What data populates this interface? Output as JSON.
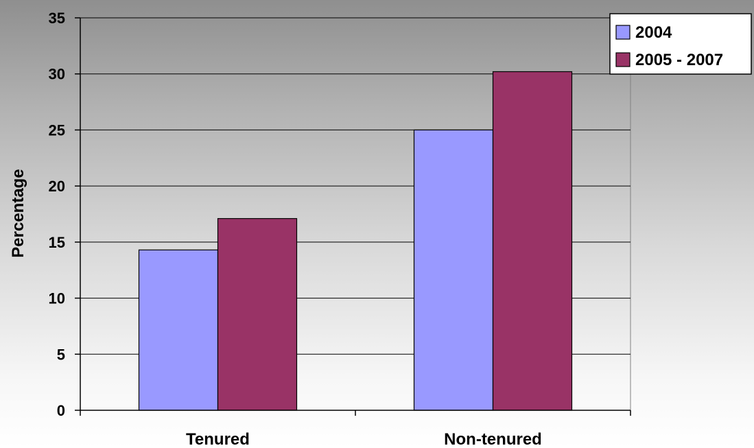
{
  "chart_data": {
    "type": "bar",
    "categories": [
      "Tenured",
      "Non-tenured"
    ],
    "series": [
      {
        "name": "2004",
        "values": [
          14.3,
          25.0
        ],
        "color": "#9999ff"
      },
      {
        "name": "2005 - 2007",
        "values": [
          17.1,
          30.2
        ],
        "color": "#993366"
      }
    ],
    "title": "",
    "xlabel": "",
    "ylabel": "Percentage",
    "ylim": [
      0,
      35
    ],
    "yticks": [
      "0",
      "5",
      "10",
      "15",
      "20",
      "25",
      "30",
      "35"
    ],
    "grid": true,
    "legend_position": "top-right"
  }
}
